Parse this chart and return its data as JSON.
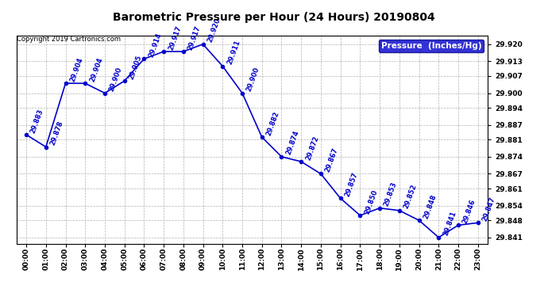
{
  "title": "Barometric Pressure per Hour (24 Hours) 20190804",
  "copyright": "Copyright 2019 Cartronics.com",
  "legend_label": "Pressure  (Inches/Hg)",
  "hours": [
    "00:00",
    "01:00",
    "02:00",
    "03:00",
    "04:00",
    "05:00",
    "06:00",
    "07:00",
    "08:00",
    "09:00",
    "10:00",
    "11:00",
    "12:00",
    "13:00",
    "14:00",
    "15:00",
    "16:00",
    "17:00",
    "18:00",
    "19:00",
    "20:00",
    "21:00",
    "22:00",
    "23:00"
  ],
  "values": [
    29.883,
    29.878,
    29.904,
    29.904,
    29.9,
    29.905,
    29.914,
    29.917,
    29.917,
    29.92,
    29.911,
    29.9,
    29.882,
    29.874,
    29.872,
    29.867,
    29.857,
    29.85,
    29.853,
    29.852,
    29.848,
    29.841,
    29.846,
    29.847
  ],
  "line_color": "#0000cc",
  "marker_color": "#0000cc",
  "bg_color": "#ffffff",
  "grid_color": "#aaaaaa",
  "title_color": "#000000",
  "label_color": "#0000cc",
  "ylim_min": 29.8385,
  "ylim_max": 29.9235,
  "yticks": [
    29.841,
    29.848,
    29.854,
    29.861,
    29.867,
    29.874,
    29.881,
    29.887,
    29.894,
    29.9,
    29.907,
    29.913,
    29.92
  ],
  "figwidth": 6.9,
  "figheight": 3.75,
  "dpi": 100
}
